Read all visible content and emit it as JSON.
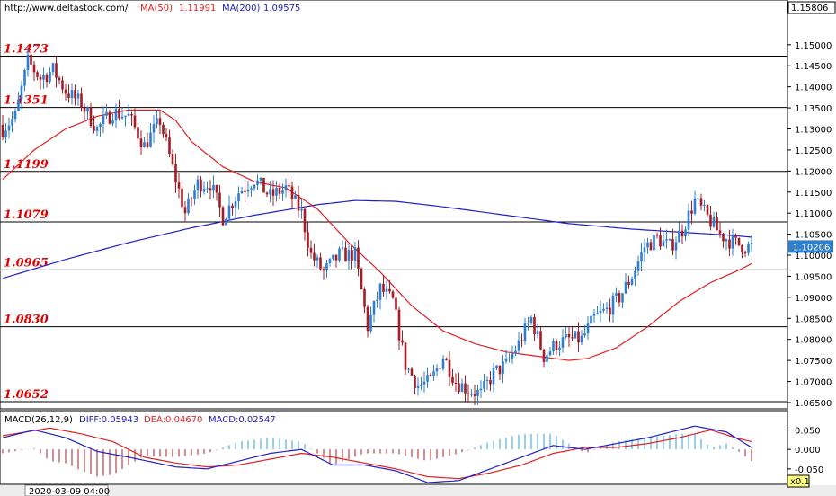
{
  "header": {
    "site": "http://www.deltastock.com/",
    "ma50_label": "MA(50)",
    "ma50_value": "1.11991",
    "ma200_label": "MA(200)",
    "ma200_value": "1.09575",
    "top_price": "1.15806"
  },
  "macd_header": {
    "title": "MACD(26,12,9)",
    "diff_label": "DIFF:0.05943",
    "dea_label": "DEA:0.04670",
    "macd_label": "MACD:0.02547"
  },
  "footer": {
    "date_label": "2020-03-09 04:00",
    "zoom_label": "x0.1"
  },
  "colors": {
    "up": "#2f7fd1",
    "down": "#a51c24",
    "ma50": "#e02020",
    "ma200": "#2020c8",
    "level_text": "#e00000",
    "macd_hist": "#2f9fd8",
    "macd_hist_neg": "#a51c24"
  },
  "chart_data": {
    "type": "candlestick",
    "price_axis": {
      "ticks": [
        "1.15000",
        "1.14500",
        "1.14000",
        "1.13500",
        "1.13000",
        "1.12500",
        "1.12000",
        "1.11500",
        "1.11000",
        "1.10500",
        "1.10000",
        "1.09500",
        "1.09000",
        "1.08500",
        "1.08000",
        "1.07500",
        "1.07000",
        "1.06500"
      ],
      "tick_values": [
        1.15,
        1.145,
        1.14,
        1.135,
        1.13,
        1.125,
        1.12,
        1.115,
        1.11,
        1.105,
        1.1,
        1.095,
        1.09,
        1.085,
        1.08,
        1.075,
        1.07,
        1.065
      ],
      "range": [
        1.0635,
        1.1585
      ],
      "current_price": "1.10206",
      "current_value": 1.10206
    },
    "levels": [
      {
        "label": "1.1473",
        "value": 1.1473
      },
      {
        "label": "1.1351",
        "value": 1.1351
      },
      {
        "label": "1.1199",
        "value": 1.1199
      },
      {
        "label": "1.1079",
        "value": 1.1079
      },
      {
        "label": "1.0965",
        "value": 1.0965
      },
      {
        "label": "1.0830",
        "value": 1.083
      },
      {
        "label": "1.0652",
        "value": 1.0652
      }
    ],
    "close_anchors": [
      [
        0,
        1.13
      ],
      [
        4,
        1.133
      ],
      [
        8,
        1.146
      ],
      [
        12,
        1.142
      ],
      [
        16,
        1.144
      ],
      [
        20,
        1.139
      ],
      [
        25,
        1.136
      ],
      [
        30,
        1.13
      ],
      [
        35,
        1.134
      ],
      [
        40,
        1.133
      ],
      [
        45,
        1.126
      ],
      [
        50,
        1.132
      ],
      [
        55,
        1.118
      ],
      [
        58,
        1.11
      ],
      [
        62,
        1.117
      ],
      [
        66,
        1.117
      ],
      [
        70,
        1.109
      ],
      [
        75,
        1.115
      ],
      [
        80,
        1.118
      ],
      [
        85,
        1.114
      ],
      [
        90,
        1.116
      ],
      [
        95,
        1.11
      ],
      [
        98,
        1.1
      ],
      [
        102,
        1.096
      ],
      [
        107,
        1.1
      ],
      [
        112,
        1.1
      ],
      [
        116,
        1.083
      ],
      [
        120,
        1.092
      ],
      [
        124,
        1.089
      ],
      [
        128,
        1.074
      ],
      [
        132,
        1.069
      ],
      [
        136,
        1.07
      ],
      [
        140,
        1.076
      ],
      [
        144,
        1.07
      ],
      [
        148,
        1.068
      ],
      [
        152,
        1.067
      ],
      [
        156,
        1.072
      ],
      [
        160,
        1.074
      ],
      [
        164,
        1.079
      ],
      [
        168,
        1.085
      ],
      [
        172,
        1.076
      ],
      [
        176,
        1.079
      ],
      [
        180,
        1.08
      ],
      [
        184,
        1.08
      ],
      [
        188,
        1.085
      ],
      [
        192,
        1.087
      ],
      [
        196,
        1.09
      ],
      [
        200,
        1.095
      ],
      [
        204,
        1.102
      ],
      [
        208,
        1.104
      ],
      [
        212,
        1.102
      ],
      [
        216,
        1.106
      ],
      [
        220,
        1.113
      ],
      [
        224,
        1.109
      ],
      [
        228,
        1.105
      ],
      [
        232,
        1.103
      ],
      [
        236,
        1.102
      ],
      [
        238,
        1.1021
      ]
    ],
    "ma50": [
      [
        0,
        1.118
      ],
      [
        10,
        1.125
      ],
      [
        20,
        1.13
      ],
      [
        30,
        1.133
      ],
      [
        40,
        1.1345
      ],
      [
        50,
        1.1345
      ],
      [
        55,
        1.132
      ],
      [
        60,
        1.127
      ],
      [
        70,
        1.121
      ],
      [
        80,
        1.1175
      ],
      [
        90,
        1.116
      ],
      [
        100,
        1.111
      ],
      [
        110,
        1.103
      ],
      [
        120,
        1.096
      ],
      [
        130,
        1.088
      ],
      [
        140,
        1.082
      ],
      [
        150,
        1.079
      ],
      [
        160,
        1.077
      ],
      [
        170,
        1.076
      ],
      [
        180,
        1.075
      ],
      [
        186,
        1.0755
      ],
      [
        195,
        1.078
      ],
      [
        205,
        1.083
      ],
      [
        215,
        1.089
      ],
      [
        225,
        1.0935
      ],
      [
        235,
        1.0968
      ],
      [
        238,
        1.098
      ]
    ],
    "ma200": [
      [
        0,
        1.0945
      ],
      [
        20,
        1.099
      ],
      [
        40,
        1.103
      ],
      [
        60,
        1.1065
      ],
      [
        80,
        1.1095
      ],
      [
        100,
        1.112
      ],
      [
        112,
        1.113
      ],
      [
        125,
        1.1128
      ],
      [
        140,
        1.1115
      ],
      [
        160,
        1.1095
      ],
      [
        180,
        1.1075
      ],
      [
        200,
        1.1062
      ],
      [
        215,
        1.1055
      ],
      [
        230,
        1.1048
      ],
      [
        238,
        1.1043
      ]
    ],
    "macd": {
      "title": "MACD(26,12,9)",
      "axis_ticks": [
        "0.050",
        "0.000",
        "-0.050"
      ],
      "axis_values": [
        0.05,
        0.0,
        -0.05
      ],
      "range": [
        -0.085,
        0.065
      ],
      "diff": [
        [
          0,
          0.03
        ],
        [
          10,
          0.05
        ],
        [
          20,
          0.03
        ],
        [
          30,
          -0.005
        ],
        [
          40,
          -0.02
        ],
        [
          55,
          -0.045
        ],
        [
          65,
          -0.05
        ],
        [
          75,
          -0.03
        ],
        [
          85,
          -0.01
        ],
        [
          95,
          0.0
        ],
        [
          105,
          -0.04
        ],
        [
          115,
          -0.04
        ],
        [
          125,
          -0.055
        ],
        [
          135,
          -0.085
        ],
        [
          145,
          -0.08
        ],
        [
          155,
          -0.05
        ],
        [
          165,
          -0.02
        ],
        [
          175,
          0.01
        ],
        [
          185,
          0.0
        ],
        [
          195,
          0.015
        ],
        [
          205,
          0.03
        ],
        [
          215,
          0.05
        ],
        [
          220,
          0.06
        ],
        [
          230,
          0.045
        ],
        [
          238,
          0.005
        ]
      ],
      "dea": [
        [
          0,
          0.035
        ],
        [
          15,
          0.055
        ],
        [
          25,
          0.04
        ],
        [
          35,
          0.02
        ],
        [
          45,
          -0.02
        ],
        [
          55,
          -0.035
        ],
        [
          65,
          -0.045
        ],
        [
          75,
          -0.04
        ],
        [
          85,
          -0.025
        ],
        [
          95,
          -0.01
        ],
        [
          105,
          -0.02
        ],
        [
          115,
          -0.035
        ],
        [
          125,
          -0.05
        ],
        [
          135,
          -0.07
        ],
        [
          145,
          -0.075
        ],
        [
          155,
          -0.06
        ],
        [
          165,
          -0.04
        ],
        [
          175,
          -0.01
        ],
        [
          185,
          0.005
        ],
        [
          195,
          0.005
        ],
        [
          205,
          0.015
        ],
        [
          215,
          0.03
        ],
        [
          225,
          0.05
        ],
        [
          233,
          0.03
        ],
        [
          238,
          0.02
        ]
      ]
    }
  }
}
